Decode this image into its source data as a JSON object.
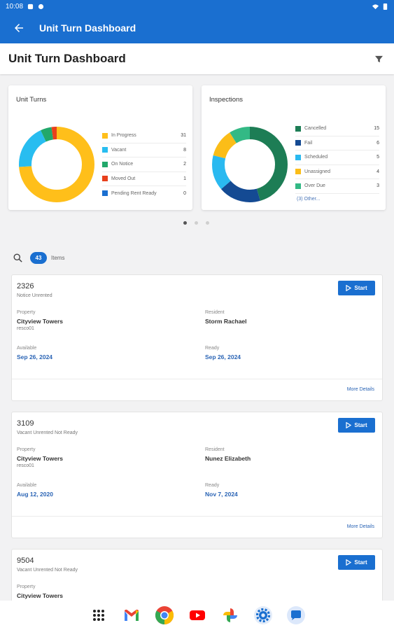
{
  "status_bar": {
    "time": "10:08",
    "battery_icon": "battery-icon",
    "wifi_icon": "wifi-icon"
  },
  "app_bar": {
    "title": "Unit Turn Dashboard"
  },
  "page_header": {
    "title": "Unit Turn Dashboard"
  },
  "chart_data": [
    {
      "type": "pie",
      "title": "Unit Turns",
      "categories": [
        "In Progress",
        "Vacant",
        "On Notice",
        "Moved Out",
        "Pending Rent Ready"
      ],
      "values": [
        31,
        8,
        2,
        1,
        0
      ],
      "colors": [
        "#ffbf1a",
        "#28bdf0",
        "#22a86b",
        "#e8401c",
        "#1a6fd0"
      ]
    },
    {
      "type": "pie",
      "title": "Inspections",
      "categories": [
        "Cancelled",
        "Fail",
        "Scheduled",
        "Unassigned",
        "Over Due"
      ],
      "values": [
        15,
        6,
        5,
        4,
        3
      ],
      "colors": [
        "#1d7d55",
        "#144a93",
        "#2ab9f0",
        "#fbbd18",
        "#33b985"
      ],
      "more_link": "(3) Other..."
    }
  ],
  "list": {
    "count": "43",
    "items_label": "Items"
  },
  "labels": {
    "property": "Property",
    "resident": "Resident",
    "available": "Available",
    "ready": "Ready",
    "start": "Start",
    "more_details": "More Details"
  },
  "cards": [
    {
      "unit": "2326",
      "status": "Notice Unrented",
      "property": "Cityview Towers",
      "property_code": "resco01",
      "resident": "Storm Rachael",
      "available": "Sep 26, 2024",
      "ready": "Sep 26, 2024"
    },
    {
      "unit": "3109",
      "status": "Vacant Unrented Not Ready",
      "property": "Cityview Towers",
      "property_code": "resco01",
      "resident": "Nunez Elizabeth",
      "available": "Aug 12, 2020",
      "ready": "Nov 7, 2024"
    },
    {
      "unit": "9504",
      "status": "Vacant Unrented Not Ready",
      "property": "Cityview Towers"
    }
  ],
  "carousel": {
    "pages": 3,
    "active": 0
  },
  "nav_apps": [
    "apps-grid-icon",
    "gmail-icon",
    "chrome-icon",
    "youtube-icon",
    "photos-icon",
    "settings-icon",
    "messages-icon"
  ]
}
